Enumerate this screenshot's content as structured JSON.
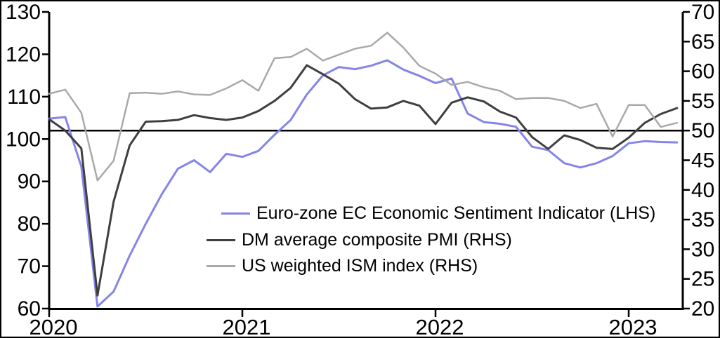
{
  "chart_data": {
    "type": "line",
    "title": "",
    "x_axis": {
      "start": "2020-01",
      "frequency": "monthly",
      "tick_labels": [
        "2020",
        "2021",
        "2022",
        "2023"
      ],
      "tick_month_indices": [
        0,
        12,
        24,
        36
      ]
    },
    "left_axis": {
      "min": 60,
      "max": 130,
      "step": 10,
      "ticks": [
        130,
        120,
        110,
        100,
        90,
        80,
        70,
        60
      ]
    },
    "right_axis": {
      "min": 20,
      "max": 70,
      "step": 5,
      "ticks": [
        70,
        65,
        60,
        55,
        50,
        45,
        40,
        35,
        30,
        25,
        20
      ]
    },
    "reference_line": {
      "axis": "right",
      "value": 50,
      "color": "#000000"
    },
    "grid": "off",
    "legend_position": "center",
    "series": [
      {
        "name": "Euro-zone EC Economic Sentiment Indicator (LHS)",
        "axis": "left",
        "color": "#8585e8",
        "width": 3,
        "values": [
          104.8,
          105.2,
          93.5,
          60.5,
          64.0,
          72.5,
          80.0,
          87.0,
          93.0,
          95.0,
          92.2,
          96.5,
          95.8,
          97.2,
          101.0,
          104.5,
          110.5,
          115.0,
          117.0,
          116.5,
          117.3,
          118.6,
          116.4,
          114.9,
          113.2,
          114.3,
          106.0,
          104.0,
          103.6,
          102.9,
          98.2,
          97.4,
          94.3,
          93.3,
          94.3,
          96.0,
          99.0,
          99.5,
          99.3,
          99.2
        ]
      },
      {
        "name": "DM average composite PMI (RHS)",
        "axis": "right",
        "color": "#3f3f3f",
        "width": 3,
        "values": [
          51.9,
          50.0,
          47.0,
          22.2,
          38.0,
          47.5,
          51.5,
          51.6,
          51.8,
          52.6,
          52.1,
          51.8,
          52.2,
          53.3,
          55.0,
          57.2,
          61.0,
          59.5,
          57.9,
          55.3,
          53.7,
          53.9,
          55.0,
          54.2,
          51.1,
          54.7,
          55.6,
          54.9,
          53.2,
          52.2,
          48.9,
          46.9,
          49.2,
          48.4,
          47.1,
          46.9,
          48.8,
          51.3,
          52.8,
          53.8
        ]
      },
      {
        "name": "US weighted ISM index (RHS)",
        "axis": "right",
        "color": "#a9a9a9",
        "width": 2.5,
        "values": [
          56.2,
          56.9,
          53.0,
          41.6,
          44.9,
          56.3,
          56.4,
          56.2,
          56.6,
          56.1,
          56.0,
          57.1,
          58.5,
          56.7,
          62.2,
          62.4,
          63.8,
          61.8,
          62.8,
          63.8,
          64.3,
          66.5,
          64.0,
          60.9,
          59.6,
          57.7,
          58.2,
          57.3,
          56.7,
          55.3,
          55.5,
          55.5,
          55.0,
          53.8,
          54.5,
          49.0,
          54.3,
          54.3,
          50.6,
          51.3
        ]
      }
    ]
  }
}
